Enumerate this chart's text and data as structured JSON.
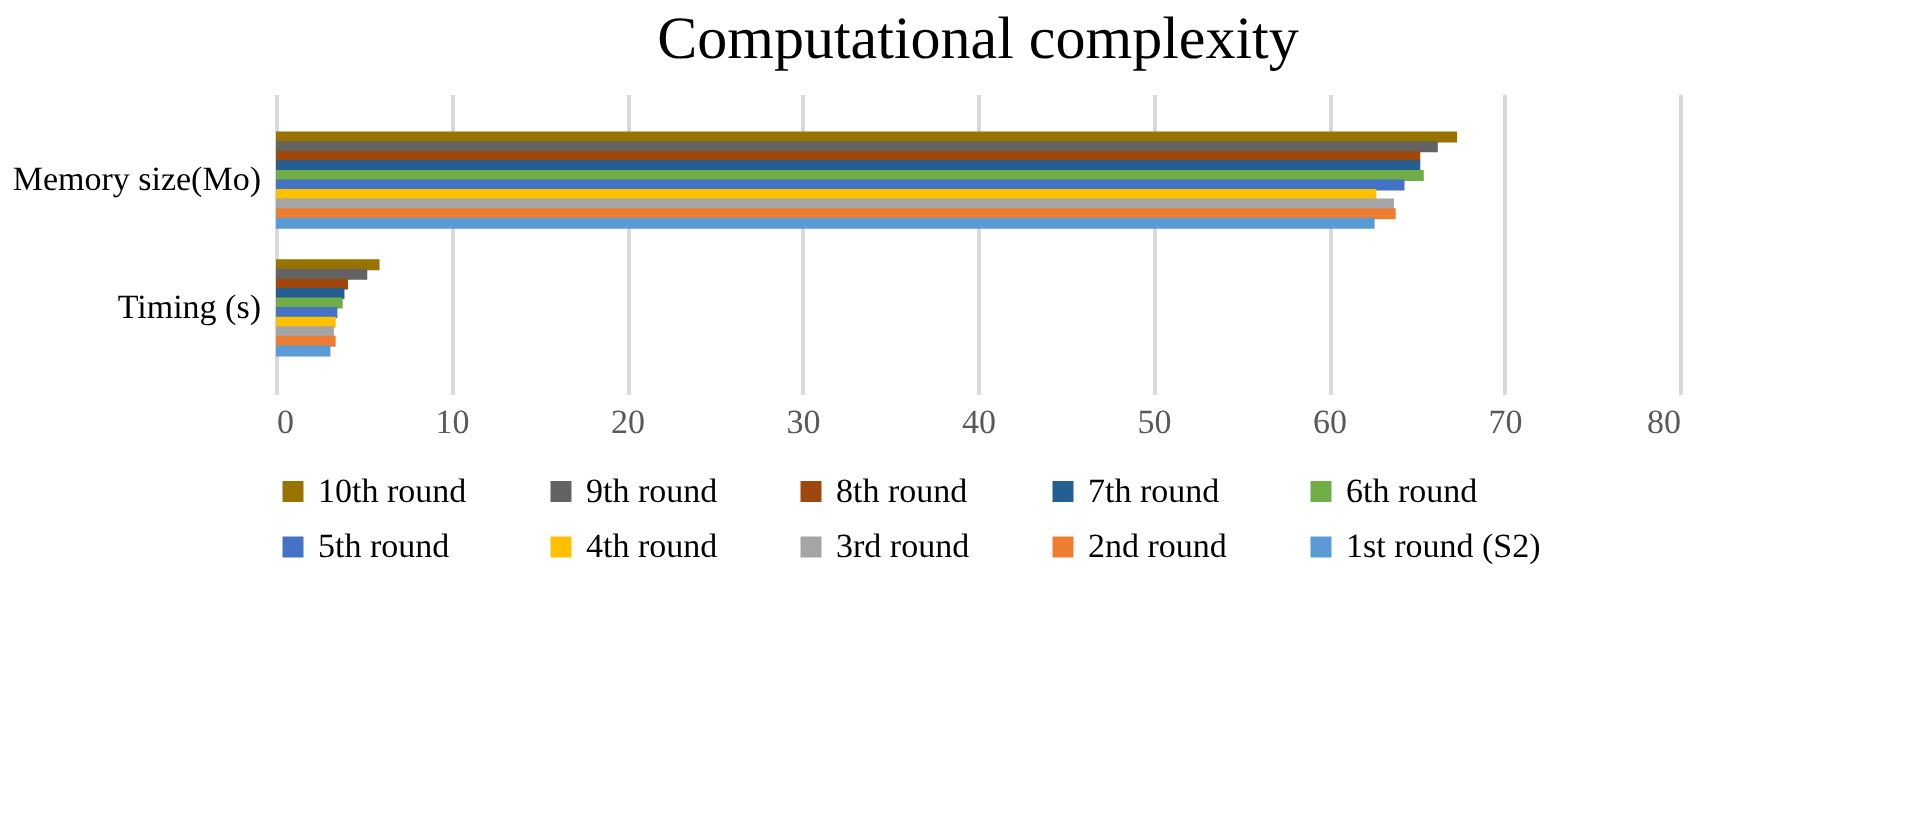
{
  "chart_data": {
    "type": "bar",
    "orientation": "horizontal",
    "title": "Computational complexity",
    "categories": [
      "Memory size(Mo)",
      "Timing (s)"
    ],
    "series": [
      {
        "name": "10th round",
        "color": "#997300",
        "values": [
          67.3,
          5.9
        ]
      },
      {
        "name": "9th round",
        "color": "#636363",
        "values": [
          66.2,
          5.2
        ]
      },
      {
        "name": "8th round",
        "color": "#9e480e",
        "values": [
          65.2,
          4.1
        ]
      },
      {
        "name": "7th round",
        "color": "#255e91",
        "values": [
          65.2,
          3.9
        ]
      },
      {
        "name": "6th round",
        "color": "#70ad47",
        "values": [
          65.4,
          3.8
        ]
      },
      {
        "name": "5th round",
        "color": "#4472c4",
        "values": [
          64.3,
          3.5
        ]
      },
      {
        "name": "4th round",
        "color": "#ffc000",
        "values": [
          62.7,
          3.4
        ]
      },
      {
        "name": "3rd round",
        "color": "#a5a5a5",
        "values": [
          63.7,
          3.3
        ]
      },
      {
        "name": "2nd round",
        "color": "#ed7d31",
        "values": [
          63.8,
          3.4
        ]
      },
      {
        "name": "1st round (S2)",
        "color": "#5b9bd5",
        "values": [
          62.6,
          3.1
        ]
      }
    ],
    "xlim": [
      0,
      80
    ],
    "xticks": [
      0,
      10,
      20,
      30,
      40,
      50,
      60,
      70,
      80
    ],
    "grid": "x",
    "legend": "bottom"
  }
}
